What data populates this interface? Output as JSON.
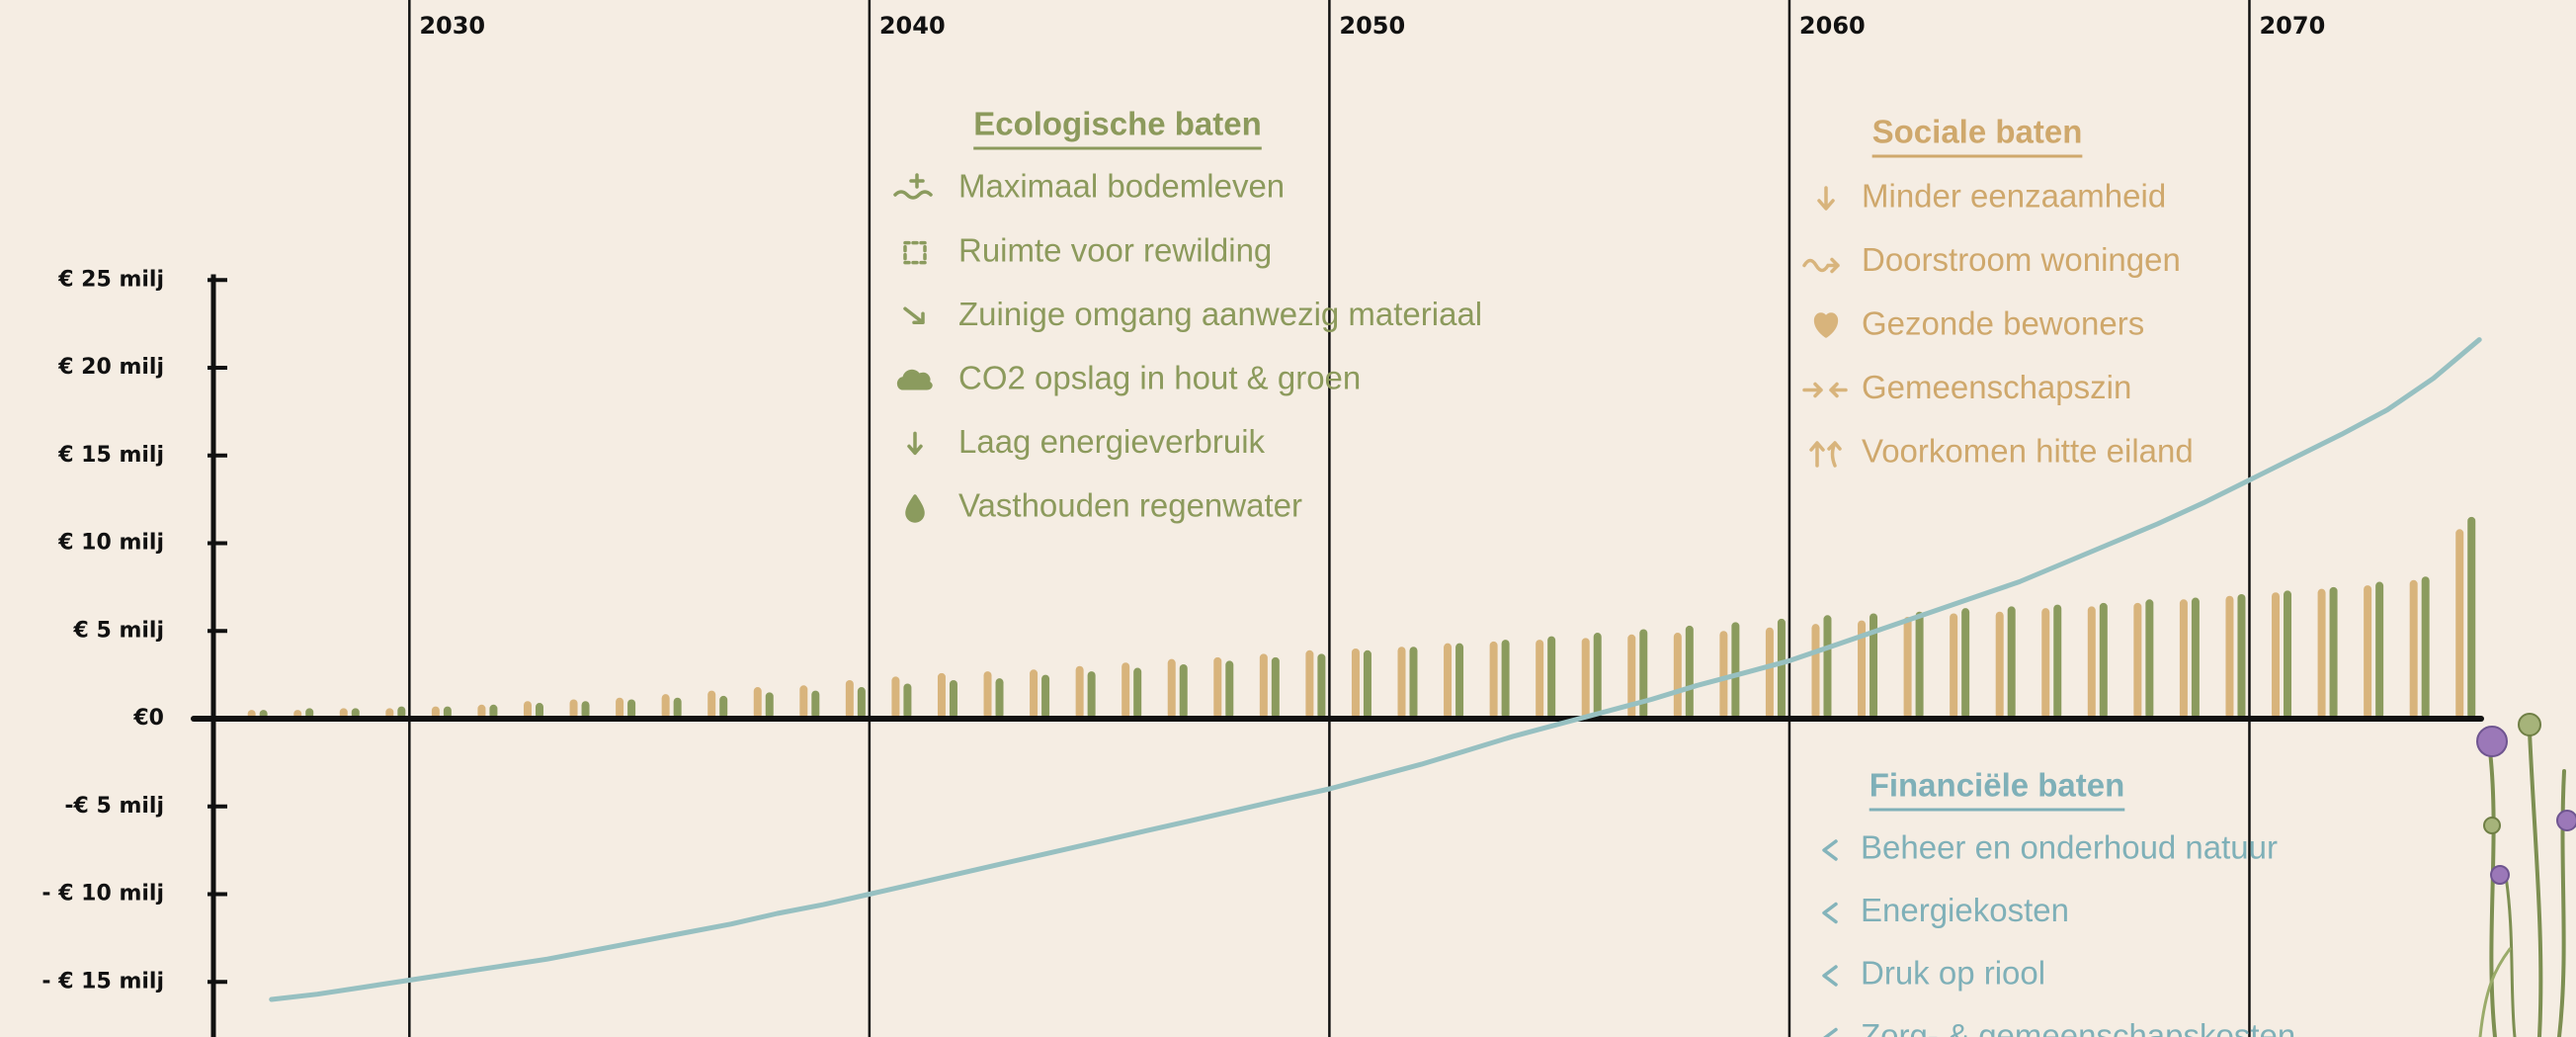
{
  "chart_data": {
    "type": "bar",
    "x": [
      2027,
      2028,
      2029,
      2030,
      2031,
      2032,
      2033,
      2034,
      2035,
      2036,
      2037,
      2038,
      2039,
      2040,
      2041,
      2042,
      2043,
      2044,
      2045,
      2046,
      2047,
      2048,
      2049,
      2050,
      2051,
      2052,
      2053,
      2054,
      2055,
      2056,
      2057,
      2058,
      2059,
      2060,
      2061,
      2062,
      2063,
      2064,
      2065,
      2066,
      2067,
      2068,
      2069,
      2070,
      2071,
      2072,
      2073,
      2074,
      2075
    ],
    "xlim": [
      2021.1,
      2077.1
    ],
    "xticks": [
      2030,
      2040,
      2050,
      2060,
      2070
    ],
    "ylim": [
      -18,
      26
    ],
    "yticks": [
      {
        "value": 25,
        "label": "€ 25 milj"
      },
      {
        "value": 20,
        "label": "€ 20 milj"
      },
      {
        "value": 15,
        "label": "€ 15 milj"
      },
      {
        "value": 10,
        "label": "€ 10 milj"
      },
      {
        "value": 5,
        "label": "€ 5 milj"
      },
      {
        "value": 0,
        "label": "€0"
      },
      {
        "value": -5,
        "label": "-€ 5 milj"
      },
      {
        "value": -10,
        "label": "- € 10 milj"
      },
      {
        "value": -15,
        "label": "- € 15 milj"
      }
    ],
    "series": [
      {
        "name": "Sociale baten",
        "color": "#d8b47c",
        "values": [
          0.5,
          0.5,
          0.6,
          0.6,
          0.7,
          0.8,
          1.0,
          1.1,
          1.2,
          1.4,
          1.6,
          1.8,
          1.9,
          2.2,
          2.4,
          2.6,
          2.7,
          2.8,
          3.0,
          3.2,
          3.4,
          3.5,
          3.7,
          3.9,
          4.0,
          4.1,
          4.3,
          4.4,
          4.5,
          4.6,
          4.8,
          4.9,
          5.0,
          5.2,
          5.4,
          5.6,
          5.8,
          6.0,
          6.1,
          6.3,
          6.4,
          6.6,
          6.8,
          7.0,
          7.2,
          7.4,
          7.6,
          7.9,
          10.8
        ],
        "items": [
          "Minder eenzaamheid",
          "Doorstroom woningen",
          "Gezonde bewoners",
          "Gemeenschapszin",
          "Voorkomen hitte eiland"
        ]
      },
      {
        "name": "Ecologische baten",
        "color": "#8b9b5e",
        "values": [
          0.5,
          0.6,
          0.6,
          0.7,
          0.7,
          0.8,
          0.9,
          1.0,
          1.1,
          1.2,
          1.3,
          1.5,
          1.6,
          1.8,
          2.0,
          2.2,
          2.3,
          2.5,
          2.7,
          2.9,
          3.1,
          3.3,
          3.5,
          3.7,
          3.9,
          4.1,
          4.3,
          4.5,
          4.7,
          4.9,
          5.1,
          5.3,
          5.5,
          5.7,
          5.9,
          6.0,
          6.1,
          6.3,
          6.4,
          6.5,
          6.6,
          6.8,
          6.9,
          7.1,
          7.3,
          7.5,
          7.8,
          8.1,
          11.5
        ],
        "items": [
          "Maximaal bodemleven",
          "Ruimte voor rewilding",
          "Zuinige omgang aanwezig materiaal",
          "CO2 opslag in hout & groen",
          "Laag energieverbruik",
          "Vasthouden regenwater"
        ]
      },
      {
        "name": "Financiële baten",
        "color": "#97c0c1",
        "type": "line",
        "values": [
          -16.0,
          -15.7,
          -15.3,
          -14.9,
          -14.5,
          -14.1,
          -13.7,
          -13.2,
          -12.7,
          -12.2,
          -11.7,
          -11.1,
          -10.6,
          -10.0,
          -9.4,
          -8.8,
          -8.2,
          -7.6,
          -7.0,
          -6.4,
          -5.8,
          -5.2,
          -4.6,
          -4.0,
          -3.3,
          -2.6,
          -1.8,
          -1.0,
          -0.3,
          0.4,
          1.1,
          1.9,
          2.6,
          3.3,
          4.2,
          5.1,
          6.0,
          6.9,
          7.8,
          8.9,
          10.0,
          11.1,
          12.3,
          13.6,
          14.9,
          16.2,
          17.6,
          19.4,
          21.6
        ],
        "items": [
          "Beheer en onderhoud natuur",
          "Energiekosten",
          "Druk op riool",
          "Zorg- & gemeenschapskosten"
        ]
      }
    ]
  }
}
